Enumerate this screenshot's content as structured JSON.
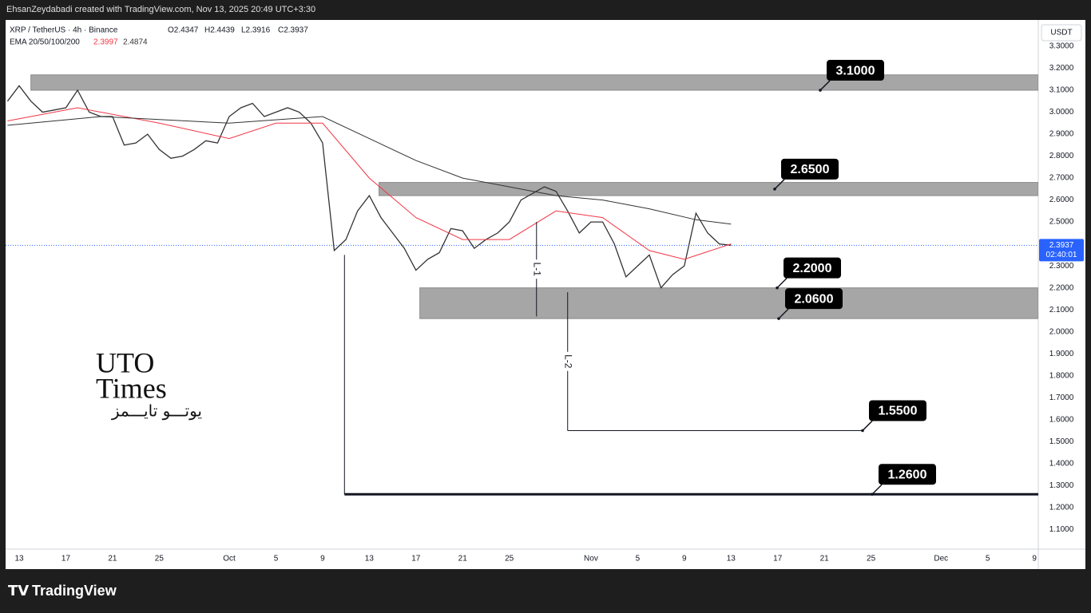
{
  "header": {
    "credit": "EhsanZeydabadi created with TradingView.com, Nov 13, 2025 20:49 UTC+3:30"
  },
  "footer": {
    "brand": "TradingView"
  },
  "watermark": {
    "line1": "UTO",
    "line2": "Times",
    "line3": "یوتـــو تایـــمز"
  },
  "chart_data": {
    "type": "line",
    "title": "XRP / TetherUS · 4h · Binance",
    "ohlc": [
      "O2.4347",
      "H2.4439",
      "L2.3916",
      "C2.3937"
    ],
    "ema": {
      "label": "EMA 20/50/100/200",
      "values": [
        2.3997,
        2.4874
      ],
      "colors": [
        "#f23645",
        "#333333"
      ]
    },
    "currency": "USDT",
    "last_price": {
      "value": 2.3937,
      "countdown": "02:40:01",
      "color": "#2962ff"
    },
    "grid": false,
    "xlim": [
      "2025-09-11T20:00",
      "2025-12-09T08:00"
    ],
    "xticks": [
      {
        "value": "2025-09-13",
        "label": "13"
      },
      {
        "value": "2025-09-17",
        "label": "17"
      },
      {
        "value": "2025-09-21",
        "label": "21"
      },
      {
        "value": "2025-09-25",
        "label": "25"
      },
      {
        "value": "2025-10-01",
        "label": "Oct"
      },
      {
        "value": "2025-10-05",
        "label": "5"
      },
      {
        "value": "2025-10-09",
        "label": "9"
      },
      {
        "value": "2025-10-13",
        "label": "13"
      },
      {
        "value": "2025-10-17",
        "label": "17"
      },
      {
        "value": "2025-10-21",
        "label": "21"
      },
      {
        "value": "2025-10-25",
        "label": "25"
      },
      {
        "value": "2025-11-01",
        "label": "Nov"
      },
      {
        "value": "2025-11-05",
        "label": "5"
      },
      {
        "value": "2025-11-09",
        "label": "9"
      },
      {
        "value": "2025-11-13",
        "label": "13"
      },
      {
        "value": "2025-11-17",
        "label": "17"
      },
      {
        "value": "2025-11-21",
        "label": "21"
      },
      {
        "value": "2025-11-25",
        "label": "25"
      },
      {
        "value": "2025-12-01",
        "label": "Dec"
      },
      {
        "value": "2025-12-05",
        "label": "5"
      },
      {
        "value": "2025-12-09",
        "label": "9"
      }
    ],
    "ylim": [
      1.01,
      3.42
    ],
    "yticks": [
      {
        "value": 1.1,
        "label": "1.1000"
      },
      {
        "value": 1.2,
        "label": "1.2000"
      },
      {
        "value": 1.3,
        "label": "1.3000"
      },
      {
        "value": 1.4,
        "label": "1.4000"
      },
      {
        "value": 1.5,
        "label": "1.5000"
      },
      {
        "value": 1.6,
        "label": "1.6000"
      },
      {
        "value": 1.7,
        "label": "1.7000"
      },
      {
        "value": 1.8,
        "label": "1.8000"
      },
      {
        "value": 1.9,
        "label": "1.9000"
      },
      {
        "value": 2.0,
        "label": "2.0000"
      },
      {
        "value": 2.1,
        "label": "2.1000"
      },
      {
        "value": 2.2,
        "label": "2.2000"
      },
      {
        "value": 2.3,
        "label": "2.3000"
      },
      {
        "value": 2.4,
        "label": "2.4000"
      },
      {
        "value": 2.5,
        "label": "2.5000"
      },
      {
        "value": 2.6,
        "label": "2.6000"
      },
      {
        "value": 2.7,
        "label": "2.7000"
      },
      {
        "value": 2.8,
        "label": "2.8000"
      },
      {
        "value": 2.9,
        "label": "2.9000"
      },
      {
        "value": 3.0,
        "label": "3.0000"
      },
      {
        "value": 3.1,
        "label": "3.1000"
      },
      {
        "value": 3.2,
        "label": "3.2000"
      },
      {
        "value": 3.3,
        "label": "3.3000"
      }
    ],
    "series": [
      {
        "color": "#333333",
        "width": 1.3,
        "x": [
          "2025-09-12",
          "2025-09-13",
          "2025-09-14",
          "2025-09-15",
          "2025-09-16",
          "2025-09-17",
          "2025-09-18",
          "2025-09-19",
          "2025-09-20",
          "2025-09-21",
          "2025-09-22",
          "2025-09-23",
          "2025-09-24",
          "2025-09-25",
          "2025-09-26",
          "2025-09-27",
          "2025-09-28",
          "2025-09-29",
          "2025-09-30",
          "2025-10-01",
          "2025-10-02",
          "2025-10-03",
          "2025-10-04",
          "2025-10-05",
          "2025-10-06",
          "2025-10-07",
          "2025-10-08",
          "2025-10-09",
          "2025-10-10",
          "2025-10-11",
          "2025-10-12",
          "2025-10-13",
          "2025-10-14",
          "2025-10-15",
          "2025-10-16",
          "2025-10-17",
          "2025-10-18",
          "2025-10-19",
          "2025-10-20",
          "2025-10-21",
          "2025-10-22",
          "2025-10-23",
          "2025-10-24",
          "2025-10-25",
          "2025-10-26",
          "2025-10-27",
          "2025-10-28",
          "2025-10-29",
          "2025-10-30",
          "2025-10-31",
          "2025-11-01",
          "2025-11-02",
          "2025-11-03",
          "2025-11-04",
          "2025-11-05",
          "2025-11-06",
          "2025-11-07",
          "2025-11-08",
          "2025-11-09",
          "2025-11-10",
          "2025-11-11",
          "2025-11-12",
          "2025-11-13"
        ],
        "values": [
          3.05,
          3.12,
          3.05,
          3.0,
          3.01,
          3.02,
          3.1,
          3.0,
          2.98,
          2.98,
          2.85,
          2.86,
          2.9,
          2.83,
          2.79,
          2.8,
          2.83,
          2.87,
          2.86,
          2.98,
          3.02,
          3.04,
          2.98,
          3.0,
          3.02,
          3.0,
          2.95,
          2.86,
          2.37,
          2.42,
          2.55,
          2.62,
          2.52,
          2.45,
          2.38,
          2.28,
          2.33,
          2.36,
          2.47,
          2.46,
          2.38,
          2.42,
          2.45,
          2.5,
          2.6,
          2.63,
          2.66,
          2.64,
          2.55,
          2.45,
          2.5,
          2.5,
          2.4,
          2.25,
          2.3,
          2.35,
          2.2,
          2.26,
          2.3,
          2.54,
          2.45,
          2.4,
          2.3937
        ]
      },
      {
        "color": "#f23645",
        "width": 1,
        "x": [
          "2025-09-12",
          "2025-09-18",
          "2025-09-25",
          "2025-10-01",
          "2025-10-05",
          "2025-10-09",
          "2025-10-13",
          "2025-10-17",
          "2025-10-21",
          "2025-10-25",
          "2025-10-29",
          "2025-11-02",
          "2025-11-06",
          "2025-11-09",
          "2025-11-13"
        ],
        "values": [
          2.96,
          3.02,
          2.95,
          2.88,
          2.95,
          2.95,
          2.7,
          2.52,
          2.42,
          2.42,
          2.55,
          2.52,
          2.37,
          2.33,
          2.4
        ]
      },
      {
        "color": "#333333",
        "width": 1,
        "x": [
          "2025-09-12",
          "2025-09-20",
          "2025-10-01",
          "2025-10-09",
          "2025-10-13",
          "2025-10-17",
          "2025-10-21",
          "2025-10-25",
          "2025-10-29",
          "2025-11-02",
          "2025-11-06",
          "2025-11-10",
          "2025-11-13"
        ],
        "values": [
          2.94,
          2.98,
          2.95,
          2.98,
          2.88,
          2.78,
          2.7,
          2.66,
          2.62,
          2.6,
          2.56,
          2.51,
          2.49
        ]
      }
    ],
    "zones": [
      {
        "from": "2025-09-14",
        "low": 3.1,
        "high": 3.17
      },
      {
        "from": "2025-10-13T20:00",
        "low": 2.62,
        "high": 2.68
      },
      {
        "from": "2025-10-17T08:00",
        "low": 2.06,
        "high": 2.2
      }
    ],
    "hlines": [
      {
        "from": "2025-10-10T21:00",
        "value": 1.26
      },
      {
        "from": "2025-10-30",
        "value": 1.55
      }
    ],
    "vlines": [
      {
        "x": "2025-10-10T21:00",
        "from": 2.35,
        "to": 1.26
      },
      {
        "x": "2025-10-27T08:00",
        "from": 2.5,
        "to": 2.07,
        "label": "L-1"
      },
      {
        "x": "2025-10-30",
        "from": 2.18,
        "to": 1.55,
        "label": "L-2"
      }
    ],
    "levels": [
      {
        "value": 3.1,
        "label": "3.1000"
      },
      {
        "value": 2.65,
        "label": "2.6500"
      },
      {
        "value": 2.2,
        "label": "2.2000"
      },
      {
        "value": 2.06,
        "label": "2.0600"
      },
      {
        "value": 1.55,
        "label": "1.5500"
      },
      {
        "value": 1.26,
        "label": "1.2600"
      }
    ]
  }
}
